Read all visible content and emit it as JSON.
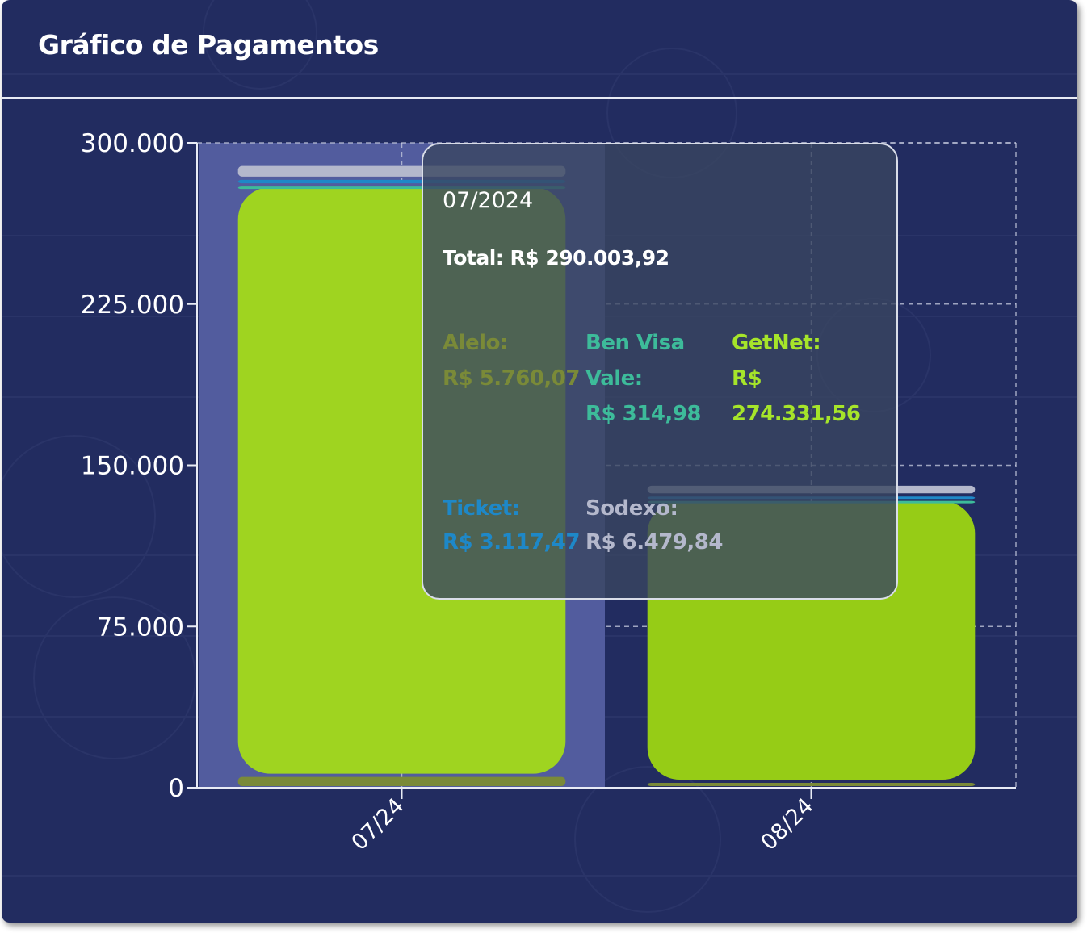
{
  "title": "Gráfico de Pagamentos",
  "colors": {
    "background": "#222c60",
    "getnet": "#9fd420",
    "alelo": "#7a8a38",
    "ticket": "#1e88c8",
    "sodexo": "#b4b8cc",
    "benvisa": "#3dbb9a",
    "hover": "#525c9e"
  },
  "tooltip": {
    "date": "07/2024",
    "total": "Total: R$ 290.003,92",
    "items": [
      {
        "label": "Alelo:",
        "value": "R$ 5.760,07",
        "color": "#7a8a38"
      },
      {
        "label": "Ben Visa Vale:",
        "label_line1": "Ben Visa",
        "label_line2": "Vale:",
        "value": "R$ 314,98",
        "color": "#3dbb9a"
      },
      {
        "label": "GetNet:",
        "value": "R$ 274.331,56",
        "color": "#a6e52a"
      },
      {
        "label": "Ticket:",
        "value": "R$ 3.117,47",
        "color": "#1e88c8"
      },
      {
        "label": "Sodexo:",
        "value": "R$ 6.479,84",
        "color": "#b4b8cc"
      }
    ]
  },
  "chart_data": {
    "type": "bar",
    "stacked": true,
    "title": "Gráfico de Pagamentos",
    "xlabel": "",
    "ylabel": "",
    "ylim": [
      0,
      300000
    ],
    "yticks": [
      0,
      75000,
      150000,
      225000,
      300000
    ],
    "ytick_labels": [
      "0",
      "75.000",
      "150.000",
      "225.000",
      "300.000"
    ],
    "categories": [
      "07/24",
      "08/24"
    ],
    "grid": true,
    "highlighted_category": "07/24",
    "series": [
      {
        "name": "Alelo",
        "color": "#7a8a38",
        "values": [
          5760.07,
          3000
        ]
      },
      {
        "name": "Ben Visa Vale",
        "color": "#3dbb9a",
        "values": [
          314.98,
          200
        ]
      },
      {
        "name": "GetNet",
        "color": "#9fd420",
        "values": [
          274331.56,
          131000
        ]
      },
      {
        "name": "Ticket",
        "color": "#1e88c8",
        "values": [
          3117.47,
          2000
        ]
      },
      {
        "name": "Sodexo",
        "color": "#b4b8cc",
        "values": [
          6479.84,
          5000
        ]
      }
    ]
  }
}
